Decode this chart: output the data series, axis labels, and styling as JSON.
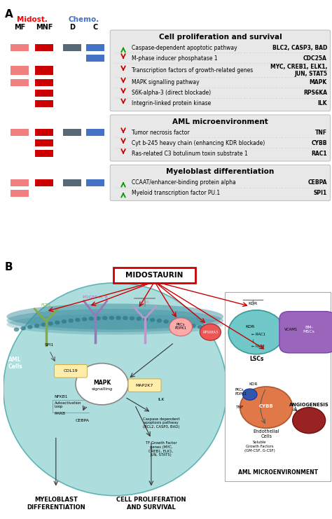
{
  "fig_width": 4.74,
  "fig_height": 7.41,
  "dpi": 100,
  "panel_a": {
    "sections": [
      {
        "title": "Cell proliferation and survival",
        "rows": [
          {
            "mf": "light_red",
            "mnf": "dark_red",
            "d": "dark_blue_gray",
            "c": "blue",
            "arrow": "up_green",
            "text": "Caspase-dependent apoptotic pathway",
            "gene": "BLC2, CASP3, BAD"
          },
          {
            "mf": null,
            "mnf": null,
            "d": null,
            "c": "blue",
            "arrow": "down_red",
            "text": "M-phase inducer phosphatase 1",
            "gene": "CDC25A"
          },
          {
            "mf": "light_red",
            "mnf": "dark_red",
            "d": null,
            "c": null,
            "arrow": "down_red",
            "text": "Transcription factors of growth-related genes",
            "gene": "MYC, CREB1, ELK1,\nJUN, STAT5"
          },
          {
            "mf": "light_red",
            "mnf": "dark_red",
            "d": null,
            "c": null,
            "arrow": "down_red",
            "text": "MAPK signalling pathway",
            "gene": "MAPK"
          },
          {
            "mf": null,
            "mnf": "dark_red",
            "d": null,
            "c": null,
            "arrow": "down_red",
            "text": "S6K-alpha-3 (direct blockade)",
            "gene": "RPS6KA"
          },
          {
            "mf": null,
            "mnf": "dark_red",
            "d": null,
            "c": null,
            "arrow": "down_red",
            "text": "Integrin-linked protein kinase",
            "gene": "ILK"
          }
        ]
      },
      {
        "title": "AML microenvironment",
        "rows": [
          {
            "mf": "light_red",
            "mnf": "dark_red",
            "d": "dark_blue_gray",
            "c": "blue",
            "arrow": "down_red",
            "text": "Tumor necrosis factor",
            "gene": "TNF"
          },
          {
            "mf": null,
            "mnf": "dark_red",
            "d": null,
            "c": null,
            "arrow": "down_red",
            "text": "Cyt b-245 heavy chain (enhancing KDR blockade)",
            "gene": "CYBB"
          },
          {
            "mf": null,
            "mnf": "dark_red",
            "d": null,
            "c": null,
            "arrow": "down_red",
            "text": "Ras-related C3 botulinum toxin substrate 1",
            "gene": "RAC1"
          }
        ]
      },
      {
        "title": "Myeloblast differentiation",
        "rows": [
          {
            "mf": "light_red",
            "mnf": "dark_red",
            "d": "dark_blue_gray",
            "c": "blue",
            "arrow": "up_green",
            "text": "CCAAT/enhancer-binding protein alpha",
            "gene": "CEBPA"
          },
          {
            "mf": "light_red",
            "mnf": null,
            "d": null,
            "c": null,
            "arrow": "up_green",
            "text": "Myeloid transcription factor PU.1",
            "gene": "SPI1"
          }
        ]
      }
    ],
    "colors": {
      "light_red": "#F08080",
      "dark_red": "#CC0000",
      "dark_blue_gray": "#596875",
      "blue": "#4472C4",
      "section_bg": "#E8E8E8",
      "section_border": "#BBBBBB"
    }
  },
  "panel_b": {
    "cell_color": "#7EC8C8",
    "cell_edge": "#4AABAB",
    "membrane_color": "#4090A0",
    "bg_color": "#A0D8D8",
    "midost_box_color": "white",
    "midost_box_edge": "#CC0000",
    "midost_text": "MIDOSTAURIN",
    "inset_bg": "white",
    "inset_edge": "#AAAAAA",
    "lsc_color": "#70C4C4",
    "bm_color": "#9966BB",
    "endo_color": "#E07040",
    "angio_color": "#AA2222",
    "arrow_red": "#CC0000",
    "arrow_black": "#333333"
  }
}
